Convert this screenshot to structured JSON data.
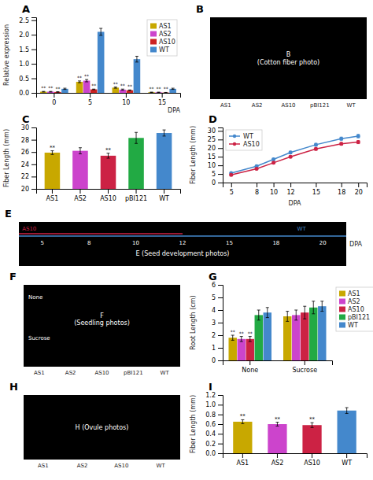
{
  "chart_data": [
    {
      "type": "bar",
      "title": "A",
      "xlabel": "DPA",
      "ylabel": "Relative expression",
      "categories": [
        "0",
        "5",
        "10",
        "15"
      ],
      "series": [
        {
          "name": "AS1",
          "color": "#c8a800",
          "values": [
            0.04,
            0.38,
            0.18,
            0.02
          ],
          "errors": [
            0.01,
            0.03,
            0.02,
            0.005
          ],
          "annotations": [
            "**",
            "**",
            "**",
            "**"
          ]
        },
        {
          "name": "AS2",
          "color": "#cc44cc",
          "values": [
            0.04,
            0.42,
            0.11,
            0.02
          ],
          "errors": [
            0.01,
            0.04,
            0.02,
            0.005
          ],
          "annotations": [
            "**",
            "**",
            "**",
            "**"
          ]
        },
        {
          "name": "AS10",
          "color": "#cc2222",
          "values": [
            0.03,
            0.12,
            0.09,
            0.01
          ],
          "errors": [
            0.01,
            0.01,
            0.01,
            0.005
          ],
          "annotations": [
            "**",
            "**",
            "**",
            "**"
          ]
        },
        {
          "name": "WT",
          "color": "#4488cc",
          "values": [
            0.14,
            2.1,
            1.16,
            0.14
          ],
          "errors": [
            0.02,
            0.12,
            0.1,
            0.02
          ]
        }
      ],
      "ylim": [
        0,
        2.6
      ],
      "yticks": [
        {
          "value": 0,
          "label": "0.0"
        },
        0.5,
        {
          "value": 1.0,
          "label": "1.0"
        },
        1.5,
        {
          "value": 2.0,
          "label": "2.0"
        },
        2.5
      ],
      "legend": "upper-right"
    },
    {
      "type": "photo",
      "title": "B",
      "annotations": [
        "B\n(Cotton fiber photo)"
      ],
      "categories": [
        "AS1",
        "AS2",
        "AS10",
        "pBI121",
        "WT"
      ]
    },
    {
      "type": "bar",
      "title": "C",
      "ylabel": "Fiber Length (mm)",
      "categories": [
        "AS1",
        "AS2",
        "AS10",
        "pBI121",
        "WT"
      ],
      "values": [
        25.9,
        26.2,
        25.4,
        28.3,
        29.1
      ],
      "errors": [
        0.3,
        0.5,
        0.4,
        0.9,
        0.5
      ],
      "colors": [
        "#c8a800",
        "#cc44cc",
        "#cc2244",
        "#22aa44",
        "#4488cc"
      ],
      "annotations": [
        "**",
        null,
        "**",
        null,
        null
      ],
      "ylim": [
        20,
        30
      ],
      "yticks": [
        20,
        22,
        24,
        26,
        28,
        30
      ]
    },
    {
      "type": "line",
      "title": "D",
      "xlabel": "DPA",
      "ylabel": "Fiber Length (mm)",
      "x": [
        5,
        8,
        10,
        12,
        15,
        18,
        20
      ],
      "xlim": [
        4,
        21
      ],
      "xticks": [
        5,
        8,
        10,
        12,
        15,
        18,
        20
      ],
      "series": [
        {
          "name": "WT",
          "color": "#4488cc",
          "values": [
            5.5,
            9.5,
            13.5,
            17.5,
            22.0,
            25.5,
            27.0
          ],
          "errors": [
            0.3,
            0.5,
            0.6,
            0.7,
            0.8,
            0.9,
            1.0
          ]
        },
        {
          "name": "AS10",
          "color": "#cc2244",
          "values": [
            4.5,
            8.0,
            11.5,
            15.0,
            19.5,
            22.5,
            23.5
          ],
          "errors": [
            0.3,
            0.4,
            0.5,
            0.6,
            0.7,
            0.8,
            0.9
          ]
        }
      ],
      "ylim": [
        0,
        32
      ],
      "yticks": [
        0,
        5,
        10,
        15,
        20,
        25,
        30
      ],
      "legend": "upper-left",
      "marker": "circle"
    },
    {
      "type": "photo",
      "title": "E",
      "xlabel": "DPA",
      "annotations": [
        "E (Seed development photos)"
      ],
      "categories": [
        "5",
        "8",
        "10",
        "12",
        "15",
        "18",
        "20"
      ],
      "series": [
        {
          "name": "AS10",
          "color": "#cc2244"
        },
        {
          "name": "WT",
          "color": "#4488cc"
        }
      ]
    },
    {
      "type": "photo",
      "title": "F",
      "annotations": [
        "F\n(Seedling photos)",
        "None",
        "Sucrose"
      ],
      "categories": [
        "AS1",
        "AS2",
        "AS10",
        "pBI121",
        "WT"
      ]
    },
    {
      "type": "bar",
      "title": "G",
      "ylabel": "Root Length (cm)",
      "categories": [
        "None",
        "Sucrose"
      ],
      "series": [
        {
          "name": "AS1",
          "color": "#c8a800",
          "values": [
            1.8,
            3.5
          ],
          "errors": [
            0.2,
            0.4
          ],
          "annotations": [
            "**",
            null
          ]
        },
        {
          "name": "AS2",
          "color": "#cc44cc",
          "values": [
            1.7,
            3.6
          ],
          "errors": [
            0.2,
            0.4
          ],
          "annotations": [
            "**",
            null
          ]
        },
        {
          "name": "AS10",
          "color": "#cc2244",
          "values": [
            1.7,
            3.8
          ],
          "errors": [
            0.2,
            0.5
          ],
          "annotations": [
            "**",
            null
          ]
        },
        {
          "name": "pBI121",
          "color": "#22aa44",
          "values": [
            3.6,
            4.2
          ],
          "errors": [
            0.4,
            0.5
          ]
        },
        {
          "name": "WT",
          "color": "#4488cc",
          "values": [
            3.8,
            4.3
          ],
          "errors": [
            0.4,
            0.4
          ]
        }
      ],
      "ylim": [
        0,
        6
      ],
      "yticks": [
        0,
        1,
        2,
        3,
        4,
        5,
        6
      ],
      "legend": "upper-right"
    },
    {
      "type": "photo",
      "title": "H",
      "annotations": [
        "H (Ovule photos)"
      ],
      "categories": [
        "AS1",
        "AS2",
        "AS10",
        "WT"
      ]
    },
    {
      "type": "bar",
      "title": "I",
      "ylabel": "Fiber Length (mm)",
      "categories": [
        "AS1",
        "AS2",
        "AS10",
        "WT"
      ],
      "values": [
        0.65,
        0.6,
        0.58,
        0.88
      ],
      "errors": [
        0.04,
        0.04,
        0.05,
        0.06
      ],
      "colors": [
        "#c8a800",
        "#cc44cc",
        "#cc2244",
        "#4488cc"
      ],
      "annotations": [
        "**",
        "**",
        "**",
        null
      ],
      "ylim": [
        0,
        1.2
      ],
      "yticks": [
        {
          "value": 0.0,
          "label": "0.0"
        },
        0.2,
        0.4,
        0.6,
        0.8,
        {
          "value": 1.0,
          "label": "1.0"
        },
        1.2
      ]
    }
  ]
}
